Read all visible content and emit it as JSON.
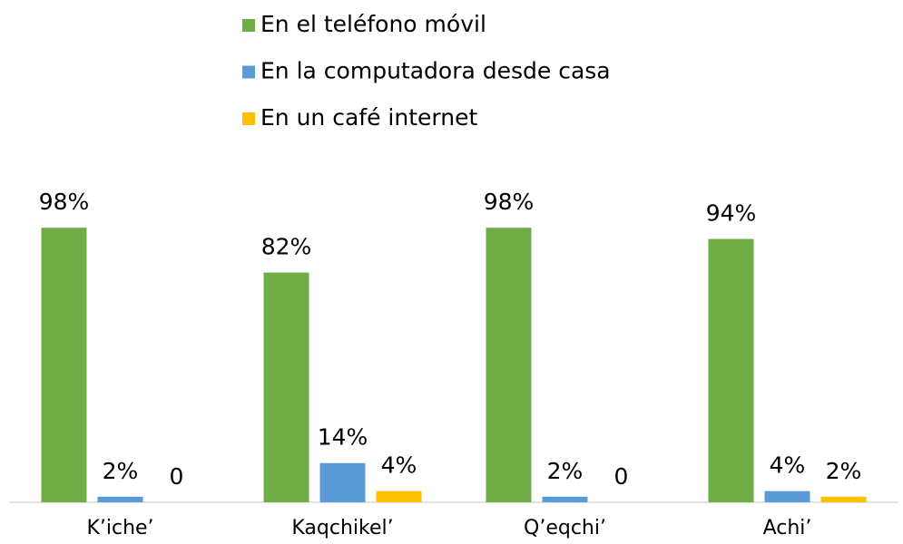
{
  "chart_data": {
    "type": "bar",
    "categories": [
      "K’iche’",
      "Kaqchikel’",
      "Q’eqchi’",
      "Achi’"
    ],
    "series": [
      {
        "name": "En el teléfono móvil",
        "color": "#70ad47",
        "values": [
          98,
          82,
          98,
          94
        ],
        "value_labels": [
          "98%",
          "82%",
          "98%",
          "94%"
        ]
      },
      {
        "name": "En la computadora desde casa",
        "color": "#5b9bd5",
        "values": [
          2,
          14,
          2,
          4
        ],
        "value_labels": [
          "2%",
          "14%",
          "2%",
          "4%"
        ]
      },
      {
        "name": "En un café internet",
        "color": "#ffc000",
        "values": [
          0,
          4,
          0,
          2
        ],
        "value_labels": [
          "0",
          "4%",
          "0",
          "2%"
        ]
      }
    ],
    "ylim": [
      0,
      100
    ],
    "legend": "top"
  }
}
